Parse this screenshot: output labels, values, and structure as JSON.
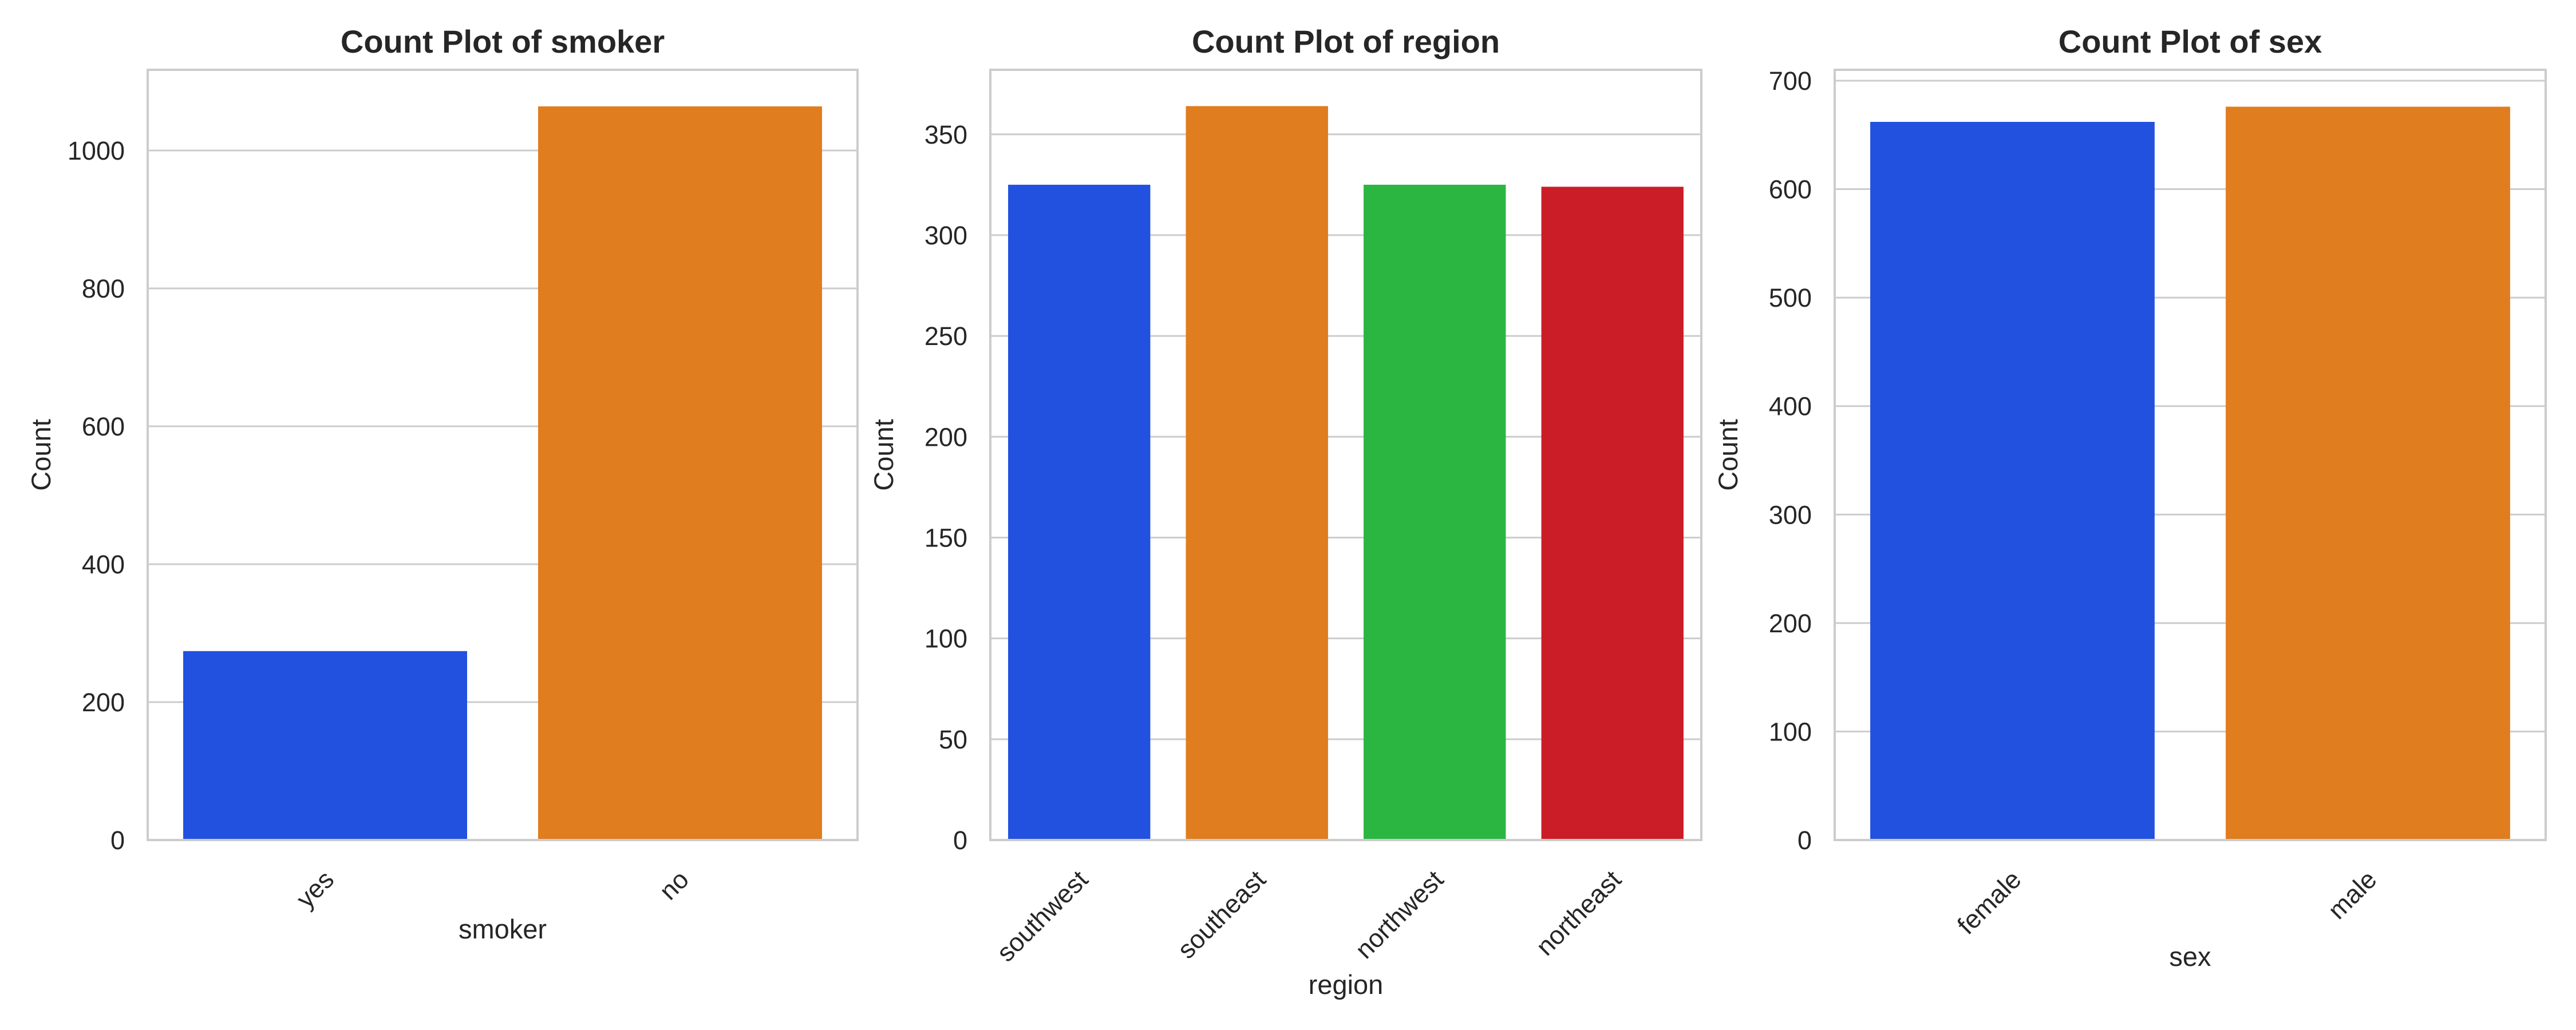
{
  "figure": {
    "background": "#ffffff",
    "palette": [
      "#2251e0",
      "#e07d1f",
      "#2bb642",
      "#cb1d27"
    ]
  },
  "chart_data": [
    {
      "type": "bar",
      "title": "Count Plot of smoker",
      "xlabel": "smoker",
      "ylabel": "Count",
      "categories": [
        "yes",
        "no"
      ],
      "values": [
        274,
        1064
      ],
      "ylim": [
        0,
        1117
      ],
      "yticks": [
        0,
        200,
        400,
        600,
        800,
        1000
      ],
      "grid": true,
      "legend": "none"
    },
    {
      "type": "bar",
      "title": "Count Plot of region",
      "xlabel": "region",
      "ylabel": "Count",
      "categories": [
        "southwest",
        "southeast",
        "northwest",
        "northeast"
      ],
      "values": [
        325,
        364,
        325,
        324
      ],
      "ylim": [
        0,
        382
      ],
      "yticks": [
        0,
        50,
        100,
        150,
        200,
        250,
        300,
        350
      ],
      "grid": true,
      "legend": "none"
    },
    {
      "type": "bar",
      "title": "Count Plot of sex",
      "xlabel": "sex",
      "ylabel": "Count",
      "categories": [
        "female",
        "male"
      ],
      "values": [
        662,
        676
      ],
      "ylim": [
        0,
        710
      ],
      "yticks": [
        0,
        100,
        200,
        300,
        400,
        500,
        600,
        700
      ],
      "grid": true,
      "legend": "none"
    }
  ]
}
